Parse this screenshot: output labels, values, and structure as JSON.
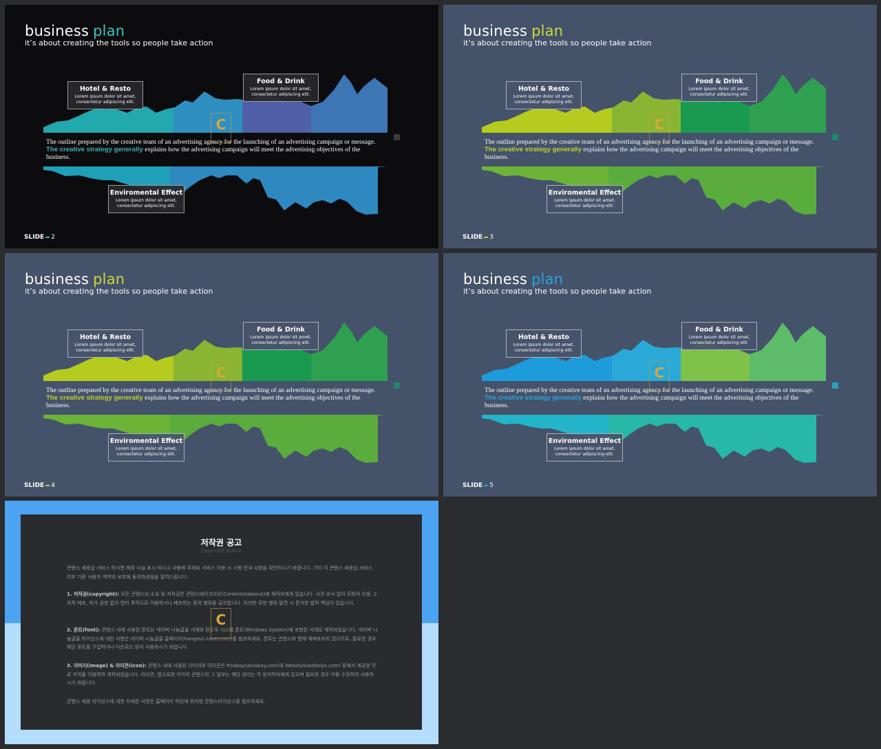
{
  "slides": [
    {
      "title": "business",
      "title_accent": "plan",
      "subtitle": "it’s about creating the tools so people take action",
      "callouts": {
        "hotel": {
          "title": "Hotel & Resto",
          "text": "Lorem ipsum dolor sit amet, consectetur adipiscing elit."
        },
        "food": {
          "title": "Food & Drink",
          "text": "Lorem ipsum dolor sit amet, consectetur adipiscing elit."
        },
        "env": {
          "title": "Enviromental Effect",
          "text": "Lorem ipsum dolor sit amet, consectetur adipiscing elit."
        }
      },
      "body_before": "The outline prepared by the creative team of an advertising agency for the launching of an advertising campaign or message.",
      "body_highlight": "The creative strategy generally",
      "body_after": "explains how the advertising campaign will meet the advertising objectives of the business.",
      "slide_label": "SLIDE",
      "slide_number": "2",
      "colors": {
        "background": "#0c0c0e",
        "accent": "#3ab0b4",
        "title_accent": "#3cc5c0",
        "seg1": "#22a9ad",
        "seg2": "#2e8fc0",
        "seg3": "#5060a8",
        "seg4": "#3e75b5",
        "bot1": "#1fa0b8",
        "bot2": "#2d89c0"
      }
    },
    {
      "title": "business",
      "title_accent": "plan",
      "subtitle": "it’s about creating the tools so people take action",
      "callouts": {
        "hotel": {
          "title": "Hotel & Resto",
          "text": "Lorem ipsum dolor sit amet, consectetur adipiscing elit."
        },
        "food": {
          "title": "Food & Drink",
          "text": "Lorem ipsum dolor sit amet, consectetur adipiscing elit."
        },
        "env": {
          "title": "Enviromental Effect",
          "text": "Lorem ipsum dolor sit amet, consectetur adipiscing elit."
        }
      },
      "body_before": "The outline prepared by the creative team of an advertising agency for the launching of an advertising campaign or message.",
      "body_highlight": "The creative strategy generally",
      "body_after": "explains how the advertising campaign will meet the advertising objectives of the business.",
      "slide_label": "SLIDE",
      "slide_number": "3",
      "colors": {
        "background": "#45536a",
        "accent": "#bfd12e",
        "title_accent": "#cfd83a",
        "seg1": "#b5cc1e",
        "seg2": "#8ab532",
        "seg3": "#1a9a50",
        "seg4": "#2f9f50",
        "bot1": "#6cb437",
        "bot2": "#5aad3c"
      }
    },
    {
      "title": "business",
      "title_accent": "plan",
      "subtitle": "it’s about creating the tools so people take action",
      "callouts": {
        "hotel": {
          "title": "Hotel & Resto",
          "text": "Lorem ipsum dolor sit amet, consectetur adipiscing elit."
        },
        "food": {
          "title": "Food & Drink",
          "text": "Lorem ipsum dolor sit amet, consectetur adipiscing elit."
        },
        "env": {
          "title": "Enviromental Effect",
          "text": "Lorem ipsum dolor sit amet, consectetur adipiscing elit."
        }
      },
      "body_before": "The outline prepared by the creative team of an advertising agency for the launching of an advertising campaign or message.",
      "body_highlight": "The creative strategy generally",
      "body_after": "explains how the advertising campaign will meet the advertising objectives of the business.",
      "slide_label": "SLIDE",
      "slide_number": "4",
      "colors": {
        "background": "#45536a",
        "accent": "#bfd12e",
        "title_accent": "#cfd83a",
        "seg1": "#b5cc1e",
        "seg2": "#8ab532",
        "seg3": "#1a9a50",
        "seg4": "#2f9f50",
        "bot1": "#6cb437",
        "bot2": "#5aad3c"
      }
    },
    {
      "title": "business",
      "title_accent": "plan",
      "subtitle": "it’s about creating the tools so people take action",
      "callouts": {
        "hotel": {
          "title": "Hotel & Resto",
          "text": "Lorem ipsum dolor sit amet, consectetur adipiscing elit."
        },
        "food": {
          "title": "Food & Drink",
          "text": "Lorem ipsum dolor sit amet, consectetur adipiscing elit."
        },
        "env": {
          "title": "Enviromental Effect",
          "text": "Lorem ipsum dolor sit amet, consectetur adipiscing elit."
        }
      },
      "body_before": "The outline prepared by the creative team of an advertising agency for the launching of an advertising campaign or message.",
      "body_highlight": "The creative strategy generally",
      "body_after": "explains how the advertising campaign will meet the advertising objectives of the business.",
      "slide_label": "SLIDE",
      "slide_number": "5",
      "colors": {
        "background": "#45536a",
        "accent": "#2aa3dc",
        "title_accent": "#2aa3dc",
        "seg1": "#1e9bdb",
        "seg2": "#2aa9d8",
        "seg3": "#7fc24a",
        "seg4": "#5cbc6a",
        "bot1": "#22b4c8",
        "bot2": "#28b8a8"
      }
    }
  ],
  "notice": {
    "title": "저작권 공고",
    "subtitle": "Copyright Notice",
    "intro": "콘텐스 세웅십 서비스 하시면 제외 사실 표시 하시고 사용해 주세요 서비스 이용 시 시행 안내 사항을 확인하시기 바랍니다. 기타 이 콘텐스 세웅십 서비스 여부 기준 사용자 계약과 보호에 동의하셨음을 알려드립니다.",
    "p1_label": "1. 저작권(copyright):",
    "p1": "모든 콘텐스의 소유 및 저작권은 콘텐스테이크아웃(Contentstakeout)에 재작자에게 있습니다. 사전 승낙 없이 모방적 이용, 2차적 배포, 허가 권한 없이 영리 목적으로 이용하거나 배포하는 등의 행위를 금지합니다. 이러한 모방 행위 발견 시 준거한 법적 책임이 있습니다.",
    "p2_label": "2. 폰트(font):",
    "p2": "콘텐스 내에 사용된 폰트는 네이버 나눔글꼴 서체와 윈도우 시스템 폰트(Windows System)에 포함된 서체로 제작되었습니다. 네이버 나눔글꼴 라이선스에 대한 사항은 네이버 나눔글꼴 홈페이지(hangeul.naver.com)를 참조하세요. 폰트는 콘텐스와 함께 재배포되지 않으므로, 필요한 경우 해당 폰트를 구입하거나 다운로드 받아 사용하시기 바랍니다.",
    "p3_label": "3. 이미지(image) & 아이콘(icon):",
    "p3": "콘텐스 내에 사용된 이미지와 아이콘은 Pixabay(pixabay.com)와 Webolys(webolys.com) 등에서 제공한 무료 저작물 이용하여 제작되었습니다. 아이콘, 참고로한 이미지 콘텐스의 그 일부는 해당 권리는 각 원저작자에게 있으며 필요한 경우 이를 수정하여 사용하시기 바랍니다.",
    "footer": "콘텐스 세웅 라이선스에 대한 자세한 사항은 홈페이지 하단에 위치한 콘텐스라이선스를 참조하세요.",
    "colors": {
      "top": "#4ca3f2",
      "bottom": "#b4dcfb",
      "panel": "#2a2b2f"
    }
  },
  "logo_letter": "C"
}
